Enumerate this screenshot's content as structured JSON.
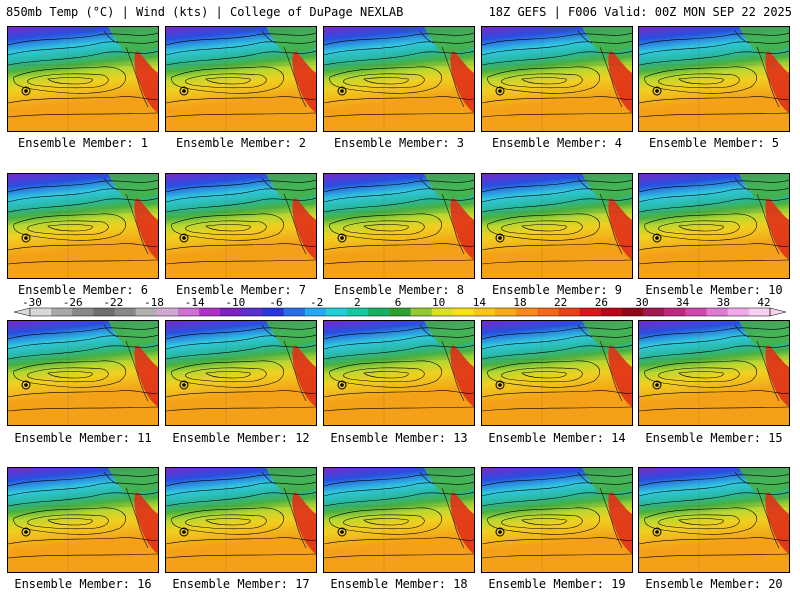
{
  "header": {
    "left": "850mb Temp (°C) | Wind (kts) | College of DuPage NEXLAB",
    "right": "18Z GEFS | F006 Valid: 00Z MON SEP 22 2025"
  },
  "member_label_prefix": "Ensemble Member: ",
  "members": [
    {
      "id": "1"
    },
    {
      "id": "2"
    },
    {
      "id": "3"
    },
    {
      "id": "4"
    },
    {
      "id": "5"
    },
    {
      "id": "6"
    },
    {
      "id": "7"
    },
    {
      "id": "8"
    },
    {
      "id": "9"
    },
    {
      "id": "10"
    },
    {
      "id": "11"
    },
    {
      "id": "12"
    },
    {
      "id": "13"
    },
    {
      "id": "14"
    },
    {
      "id": "15"
    },
    {
      "id": "16"
    },
    {
      "id": "17"
    },
    {
      "id": "18"
    },
    {
      "id": "19"
    },
    {
      "id": "20"
    }
  ],
  "colorbar": {
    "labels": [
      "-30",
      "-26",
      "-22",
      "-18",
      "-14",
      "-10",
      "-6",
      "-2",
      "2",
      "6",
      "10",
      "14",
      "18",
      "22",
      "26",
      "30",
      "34",
      "38",
      "42"
    ],
    "colors": [
      "#d8d8d8",
      "#a8a8a8",
      "#888888",
      "#6e6e6e",
      "#888888",
      "#b0b0b0",
      "#cfa8cf",
      "#d070d0",
      "#b030c8",
      "#7c20c0",
      "#5a30d0",
      "#2838d8",
      "#2870e8",
      "#28a8f0",
      "#20d0d8",
      "#18c8a0",
      "#18b060",
      "#30a030",
      "#90c830",
      "#d8e020",
      "#f8e018",
      "#f8c818",
      "#f8a818",
      "#f88818",
      "#f06818",
      "#e84018",
      "#d81818",
      "#b80818",
      "#900818",
      "#a01850",
      "#c02880",
      "#d048b0",
      "#e078d0",
      "#f0a8e8",
      "#f8d0f0"
    ]
  },
  "map_colors": {
    "purple": "#7a28c8",
    "blue": "#2850e0",
    "cyan": "#30c8e0",
    "teal": "#28b8a0",
    "green": "#48b040",
    "lime": "#b8d830",
    "yellow": "#f0d020",
    "orange": "#f4a018",
    "red": "#e03018"
  }
}
